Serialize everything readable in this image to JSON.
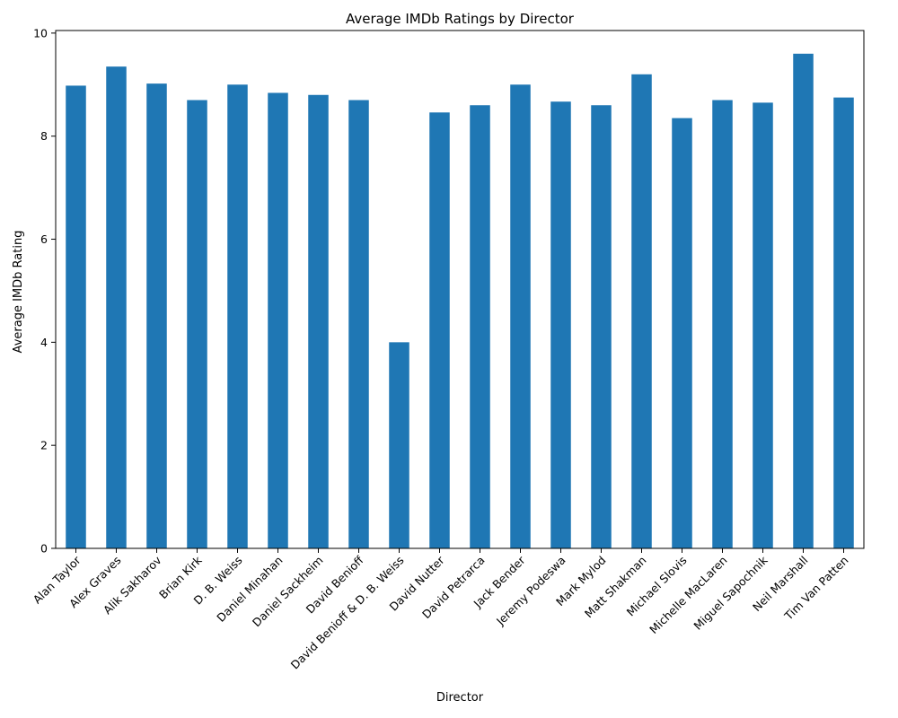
{
  "chart_data": {
    "type": "bar",
    "title": "Average IMDb Ratings by Director",
    "xlabel": "Director",
    "ylabel": "Average IMDb Rating",
    "categories": [
      "Alan Taylor",
      "Alex Graves",
      "Alik Sakharov",
      "Brian Kirk",
      "D. B. Weiss",
      "Daniel Minahan",
      "Daniel Sackheim",
      "David Benioff",
      "David Benioff & D. B. Weiss",
      "David Nutter",
      "David Petrarca",
      "Jack Bender",
      "Jeremy Podeswa",
      "Mark Mylod",
      "Matt Shakman",
      "Michael Slovis",
      "Michelle MacLaren",
      "Miguel Sapochnik",
      "Neil Marshall",
      "Tim Van Patten"
    ],
    "values": [
      8.98,
      9.35,
      9.02,
      8.7,
      9.0,
      8.84,
      8.8,
      8.7,
      4.0,
      8.46,
      8.6,
      9.0,
      8.67,
      8.6,
      9.2,
      8.35,
      8.7,
      8.65,
      9.6,
      8.75
    ],
    "ylim": [
      0,
      10.05
    ],
    "yticks": [
      0,
      2,
      4,
      6,
      8,
      10
    ],
    "bar_color": "#1f77b4",
    "grid": false,
    "legend": "none"
  }
}
